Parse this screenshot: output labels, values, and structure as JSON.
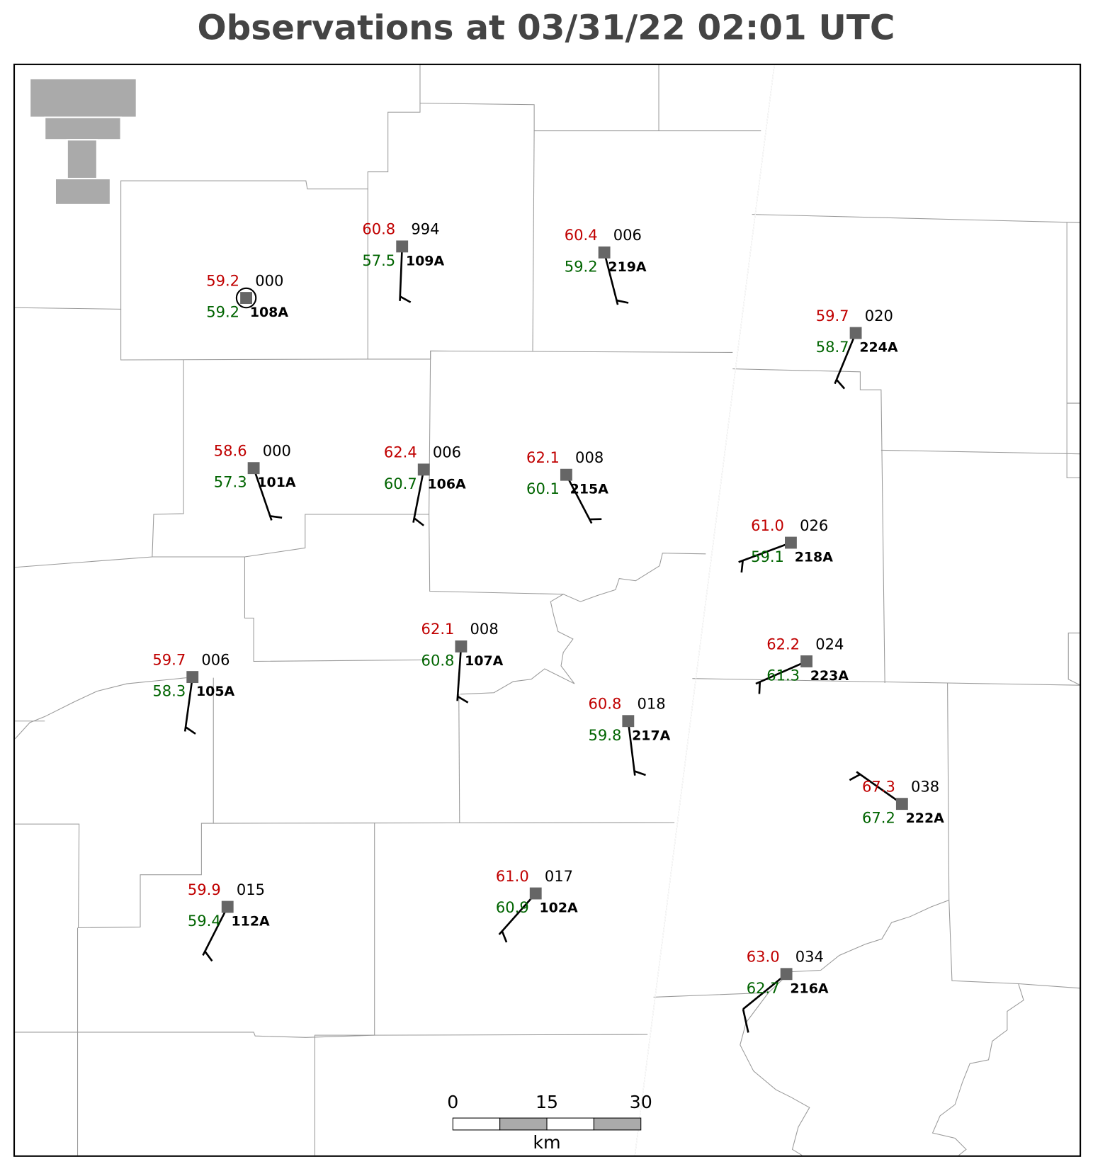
{
  "header": {
    "title": "Observations at 03/31/22 02:01 UTC"
  },
  "stations": [
    {
      "id": "108A",
      "temperature": "59.2",
      "dewpoint": "59.2",
      "pressure": "000"
    },
    {
      "id": "109A",
      "temperature": "60.8",
      "dewpoint": "57.5",
      "pressure": "994"
    },
    {
      "id": "219A",
      "temperature": "60.4",
      "dewpoint": "59.2",
      "pressure": "006"
    },
    {
      "id": "224A",
      "temperature": "59.7",
      "dewpoint": "58.7",
      "pressure": "020"
    },
    {
      "id": "101A",
      "temperature": "58.6",
      "dewpoint": "57.3",
      "pressure": "000"
    },
    {
      "id": "106A",
      "temperature": "62.4",
      "dewpoint": "60.7",
      "pressure": "006"
    },
    {
      "id": "215A",
      "temperature": "62.1",
      "dewpoint": "60.1",
      "pressure": "008"
    },
    {
      "id": "218A",
      "temperature": "61.0",
      "dewpoint": "59.1",
      "pressure": "026"
    },
    {
      "id": "107A",
      "temperature": "62.1",
      "dewpoint": "60.8",
      "pressure": "008"
    },
    {
      "id": "105A",
      "temperature": "59.7",
      "dewpoint": "58.3",
      "pressure": "006"
    },
    {
      "id": "223A",
      "temperature": "62.2",
      "dewpoint": "61.3",
      "pressure": "024"
    },
    {
      "id": "217A",
      "temperature": "60.8",
      "dewpoint": "59.8",
      "pressure": "018"
    },
    {
      "id": "222A",
      "temperature": "67.3",
      "dewpoint": "67.2",
      "pressure": "038"
    },
    {
      "id": "112A",
      "temperature": "59.9",
      "dewpoint": "59.4",
      "pressure": "015"
    },
    {
      "id": "102A",
      "temperature": "61.0",
      "dewpoint": "60.9",
      "pressure": "017"
    },
    {
      "id": "216A",
      "temperature": "63.0",
      "dewpoint": "62.7",
      "pressure": "034"
    }
  ],
  "scale_bar": {
    "ticks": [
      "0",
      "15",
      "30"
    ],
    "unit": "km"
  }
}
